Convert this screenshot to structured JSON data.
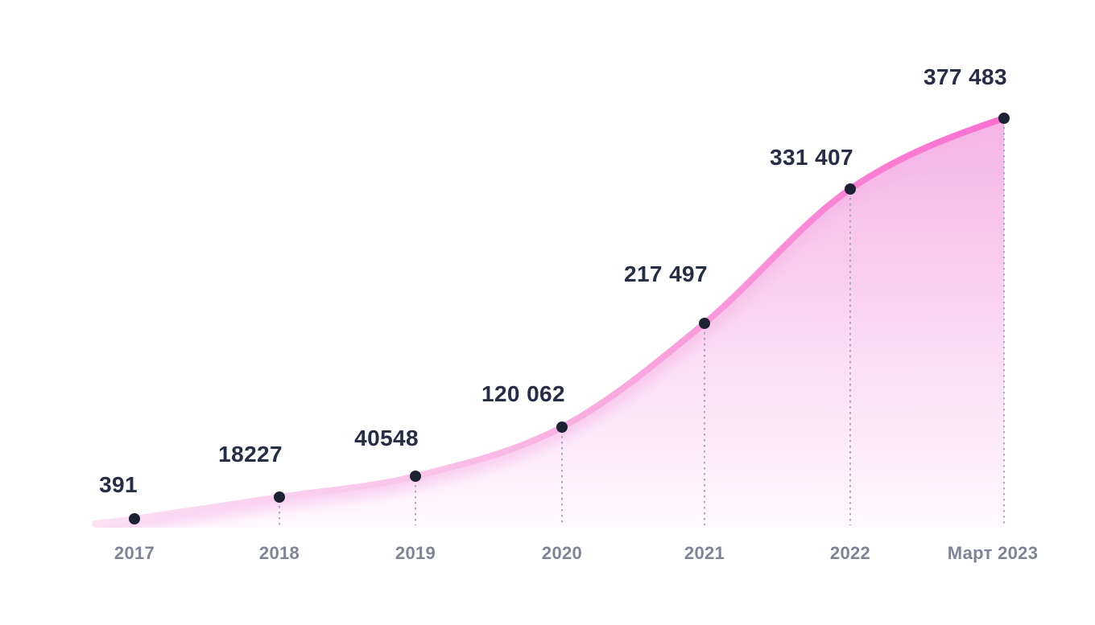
{
  "page": {
    "background": "#ffffff"
  },
  "chart_data": {
    "type": "area",
    "title": "",
    "xlabel": "",
    "ylabel": "",
    "categories": [
      "2017",
      "2018",
      "2019",
      "2020",
      "2021",
      "2022",
      "Март 2023"
    ],
    "values": [
      391,
      18227,
      40548,
      120062,
      217497,
      331407,
      377483
    ],
    "points": [
      {
        "category": "2017",
        "value": 391,
        "label": "391"
      },
      {
        "category": "2018",
        "value": 18227,
        "label": "18227"
      },
      {
        "category": "2019",
        "value": 40548,
        "label": "40548"
      },
      {
        "category": "2020",
        "value": 120062,
        "label": "120 062"
      },
      {
        "category": "2021",
        "value": 217497,
        "label": "217 497"
      },
      {
        "category": "2022",
        "value": 331407,
        "label": "331 407"
      },
      {
        "category": "Март 2023",
        "value": 377483,
        "label": "377 483"
      }
    ],
    "ylim": [
      0,
      400000
    ],
    "legend": "none",
    "grid": "none",
    "leader_lines": "dashed vertical line from each data point down to baseline",
    "colors": {
      "line_gradient_start": "#fbe0f3",
      "line_gradient_mid": "#f9a6de",
      "line_gradient_end": "#f96fcf",
      "area_top": "#f5b3e6",
      "area_bottom": "#fef9fd",
      "point_dot": "#1d2134",
      "value_label": "#272d45",
      "axis_label": "#7e8496",
      "leader_line": "#9aa0ad",
      "background": "#ffffff"
    }
  }
}
